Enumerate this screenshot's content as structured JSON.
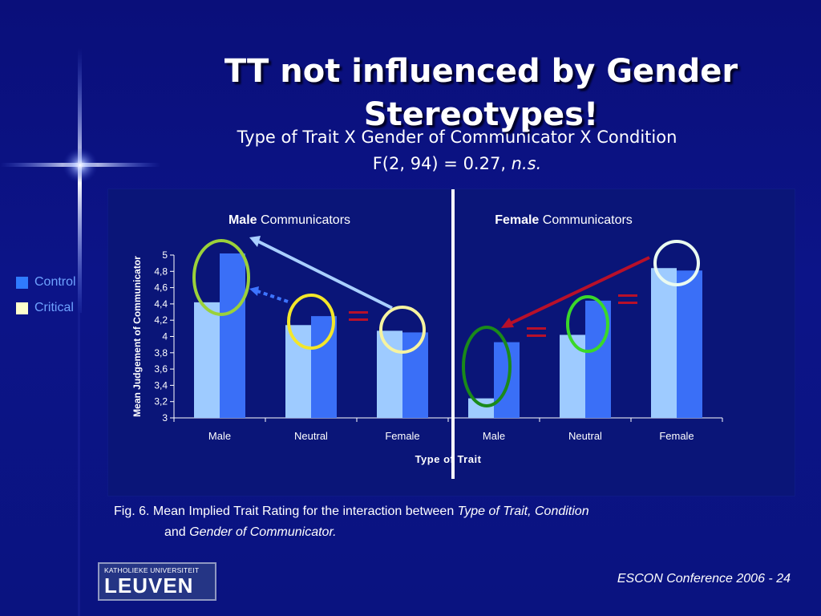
{
  "slide": {
    "title": "TT not influenced by Gender Stereotypes!",
    "subtitle_line1": "Type of Trait X Gender of Communicator X Condition",
    "subtitle_line2_main": "F(2, 94) = 0.27, ",
    "subtitle_line2_italic": "n.s.",
    "caption": {
      "fig": "Fig. 6.  Mean Implied Trait Rating for the interaction between ",
      "fig_italic": "Type of Trait, Condition",
      "and": "and ",
      "and_italic": "Gender of Communicator."
    },
    "logo_small": "KATHOLIEKE UNIVERSITEIT",
    "logo_big": "LEUVEN",
    "footer": "ESCON Conference 2006 - 24"
  },
  "colors": {
    "background": "#0c1488",
    "control": "#9ecbff",
    "critical": "#3a6ff7",
    "legend_critical_swatch": "#ffffcc",
    "legend_control_swatch": "#2f7bff",
    "annotation_red": "#b8102a"
  },
  "chart_data": {
    "type": "bar",
    "ylabel": "Mean Judgement of Communicator",
    "xlabel": "Type of Trait",
    "ylim": [
      3,
      5
    ],
    "yticks": [
      "3",
      "3,2",
      "3,4",
      "3,6",
      "3,8",
      "4",
      "4,2",
      "4,4",
      "4,6",
      "4,8",
      "5"
    ],
    "legend": [
      "Control",
      "Critical"
    ],
    "legend_position": "left",
    "panels": [
      {
        "title_bold": "Male",
        "title_rest": " Communicators",
        "categories": [
          "Male",
          "Neutral",
          "Female"
        ],
        "series": [
          {
            "name": "Control",
            "values": [
              4.42,
              4.14,
              4.07
            ]
          },
          {
            "name": "Critical",
            "values": [
              5.02,
              4.25,
              4.05
            ]
          }
        ]
      },
      {
        "title_bold": "Female",
        "title_rest": " Communicators",
        "categories": [
          "Male",
          "Neutral",
          "Female"
        ],
        "series": [
          {
            "name": "Control",
            "values": [
              3.24,
              4.02,
              4.84
            ]
          },
          {
            "name": "Critical",
            "values": [
              3.93,
              4.44,
              4.81
            ]
          }
        ]
      }
    ]
  }
}
